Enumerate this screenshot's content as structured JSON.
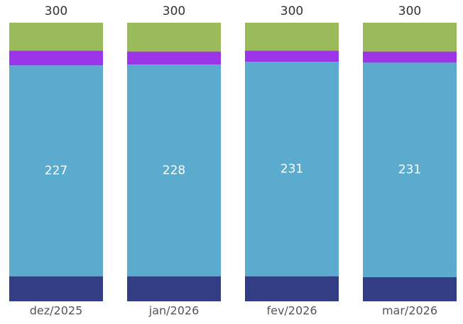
{
  "chart_data": {
    "type": "stacked_bar",
    "categories": [
      "dez/2025",
      "jan/2026",
      "fev/2026",
      "mar/2026"
    ],
    "totals": [
      300,
      300,
      300,
      300
    ],
    "series": [
      {
        "color": "#333d83",
        "values": [
          27,
          27,
          27,
          26
        ]
      },
      {
        "color": "#5aabcd",
        "values": [
          227,
          228,
          231,
          231
        ],
        "show_labels": true
      },
      {
        "color": "#9c35e8",
        "values": [
          16,
          14,
          12,
          12
        ]
      },
      {
        "color": "#9bba5a",
        "values": [
          30,
          31,
          30,
          31
        ]
      }
    ]
  }
}
